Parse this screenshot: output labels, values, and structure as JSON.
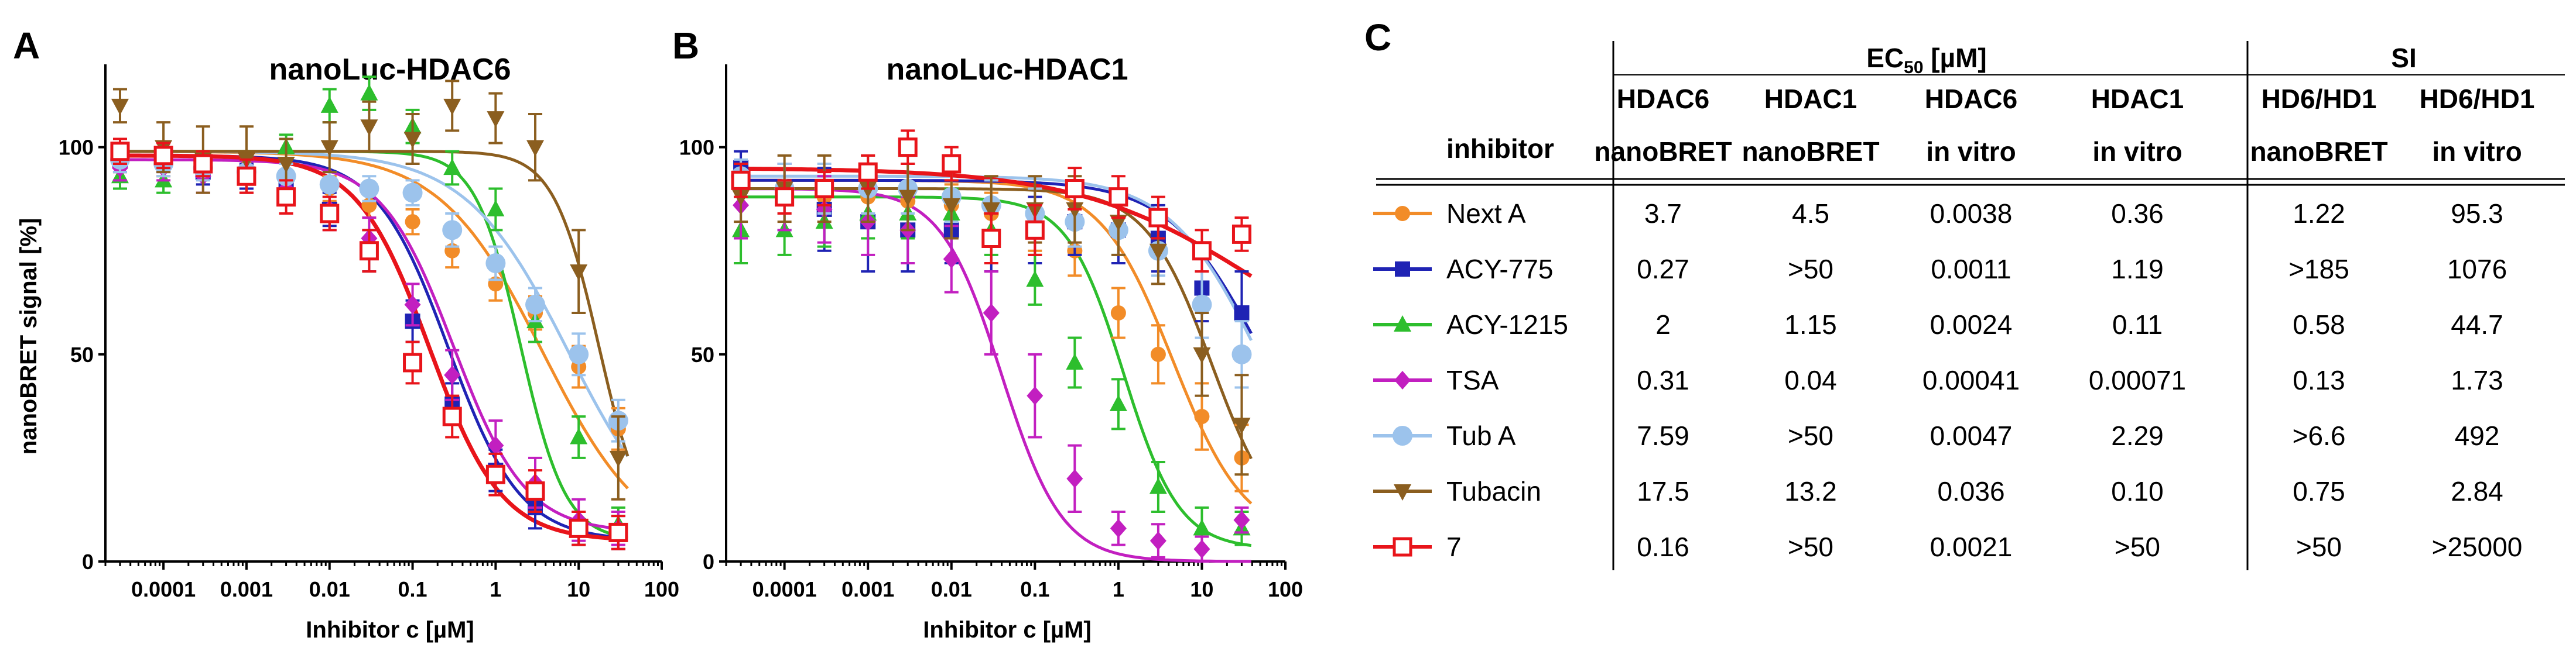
{
  "panels": {
    "A": {
      "letter": "A",
      "chart_data": {
        "type": "scatter",
        "title": "nanoLuc-HDAC6",
        "xlabel": "Inhibitor c [µM]",
        "ylabel": "nanoBRET signal [%]",
        "xscale": "log",
        "xlim": [
          2e-05,
          100
        ],
        "ylim": [
          0,
          120
        ],
        "xticks": [
          0.0001,
          0.001,
          0.01,
          0.1,
          1,
          10,
          100
        ],
        "xtick_labels": [
          "0.0001",
          "0.001",
          "0.01",
          "0.1",
          "1",
          "10",
          "100"
        ],
        "yticks": [
          0,
          50,
          100
        ],
        "ytick_labels": [
          "0",
          "50",
          "100"
        ],
        "x": [
          3e-05,
          0.0001,
          0.0003,
          0.001,
          0.003,
          0.01,
          0.03,
          0.1,
          0.3,
          1,
          3,
          10,
          30
        ],
        "series": [
          {
            "name": "Next A",
            "ec50": 3.7,
            "hill": 0.7,
            "top": 99,
            "bottom": 2,
            "values": [
              97,
              96,
              96,
              95,
              93,
              90,
              86,
              82,
              75,
              67,
              60,
              47,
              32
            ],
            "err": [
              3,
              3,
              3,
              3,
              3,
              3,
              3,
              3,
              4,
              4,
              4,
              5,
              5
            ]
          },
          {
            "name": "ACY-775",
            "ec50": 0.27,
            "hill": 1.0,
            "top": 98,
            "bottom": 5,
            "values": [
              97,
              97,
              94,
              93,
              90,
              85,
              75,
              58,
              38,
              22,
              13,
              8,
              7
            ],
            "err": [
              3,
              3,
              3,
              3,
              3,
              4,
              5,
              5,
              5,
              5,
              5,
              4,
              4
            ]
          },
          {
            "name": "ACY-1215",
            "ec50": 2.0,
            "hill": 1.6,
            "top": 99,
            "bottom": 5,
            "values": [
              93,
              92,
              96,
              95,
              100,
              110,
              113,
              105,
              95,
              85,
              58,
              30,
              9
            ],
            "err": [
              3,
              3,
              3,
              3,
              3,
              4,
              4,
              4,
              4,
              5,
              5,
              5,
              4
            ]
          },
          {
            "name": "TSA",
            "ec50": 0.31,
            "hill": 1.0,
            "top": 97,
            "bottom": 7,
            "values": [
              95,
              95,
              93,
              93,
              90,
              85,
              78,
              62,
              45,
              28,
              19,
              10,
              8
            ],
            "err": [
              3,
              3,
              4,
              4,
              4,
              5,
              5,
              5,
              6,
              6,
              6,
              5,
              4
            ]
          },
          {
            "name": "Tub A",
            "ec50": 7.59,
            "hill": 0.7,
            "top": 99,
            "bottom": 2,
            "values": [
              97,
              96,
              95,
              94,
              93,
              91,
              90,
              89,
              80,
              72,
              62,
              50,
              34
            ],
            "err": [
              3,
              3,
              3,
              3,
              3,
              3,
              3,
              3,
              4,
              4,
              4,
              5,
              5
            ]
          },
          {
            "name": "Tubacin",
            "ec50": 17.5,
            "hill": 1.6,
            "top": 99,
            "bottom": 5,
            "values": [
              110,
              100,
              97,
              97,
              96,
              100,
              105,
              102,
              110,
              107,
              100,
              70,
              25
            ],
            "err": [
              4,
              6,
              8,
              8,
              6,
              6,
              6,
              6,
              6,
              6,
              8,
              10,
              10
            ]
          },
          {
            "name": "7",
            "ec50": 0.16,
            "hill": 1.0,
            "top": 98,
            "bottom": 5,
            "values": [
              99,
              98,
              96,
              93,
              88,
              84,
              75,
              48,
              35,
              21,
              17,
              8,
              7
            ],
            "err": [
              3,
              3,
              3,
              4,
              4,
              4,
              5,
              5,
              5,
              5,
              5,
              4,
              4
            ]
          }
        ]
      }
    },
    "B": {
      "letter": "B",
      "chart_data": {
        "type": "scatter",
        "title": "nanoLuc-HDAC1",
        "xlabel": "Inhibitor c [µM]",
        "ylabel": "",
        "xscale": "log",
        "xlim": [
          2e-05,
          100
        ],
        "ylim": [
          0,
          120
        ],
        "xticks": [
          0.0001,
          0.001,
          0.01,
          0.1,
          1,
          10,
          100
        ],
        "xtick_labels": [
          "0.0001",
          "0.001",
          "0.01",
          "0.1",
          "1",
          "10",
          "100"
        ],
        "yticks": [
          0,
          50,
          100
        ],
        "ytick_labels": [
          "0",
          "50",
          "100"
        ],
        "x": [
          3e-05,
          0.0001,
          0.0003,
          0.001,
          0.003,
          0.01,
          0.03,
          0.1,
          0.3,
          1,
          3,
          10,
          30
        ],
        "series": [
          {
            "name": "Next A",
            "ec50": 4.5,
            "hill": 1.0,
            "top": 92,
            "bottom": 5,
            "values": [
              90,
              88,
              88,
              88,
              87,
              86,
              84,
              80,
              75,
              60,
              50,
              35,
              25
            ],
            "err": [
              4,
              4,
              4,
              4,
              4,
              5,
              5,
              5,
              6,
              6,
              7,
              8,
              8
            ]
          },
          {
            "name": "ACY-775",
            "ec50": 50,
            "hill": 0.8,
            "top": 92,
            "bottom": 10,
            "values": [
              95,
              88,
              85,
              82,
              80,
              80,
              78,
              80,
              82,
              80,
              78,
              66,
              60
            ],
            "err": [
              4,
              8,
              10,
              12,
              10,
              8,
              8,
              8,
              8,
              8,
              8,
              8,
              10
            ]
          },
          {
            "name": "ACY-1215",
            "ec50": 1.15,
            "hill": 1.3,
            "top": 88,
            "bottom": 3,
            "values": [
              80,
              80,
              82,
              84,
              84,
              84,
              80,
              68,
              48,
              38,
              18,
              8,
              8
            ],
            "err": [
              8,
              6,
              6,
              6,
              6,
              6,
              6,
              6,
              6,
              6,
              6,
              5,
              4
            ]
          },
          {
            "name": "TSA",
            "ec50": 0.04,
            "hill": 1.2,
            "top": 90,
            "bottom": 0,
            "values": [
              86,
              88,
              85,
              82,
              80,
              73,
              60,
              40,
              20,
              8,
              5,
              3,
              10
            ],
            "err": [
              8,
              8,
              8,
              8,
              8,
              8,
              10,
              10,
              8,
              4,
              4,
              3,
              3
            ]
          },
          {
            "name": "Tub A",
            "ec50": 50,
            "hill": 0.8,
            "top": 93,
            "bottom": 5,
            "values": [
              93,
              90,
              90,
              90,
              90,
              88,
              86,
              84,
              82,
              80,
              75,
              62,
              50
            ],
            "err": [
              4,
              6,
              6,
              6,
              6,
              6,
              6,
              6,
              6,
              6,
              6,
              8,
              8
            ]
          },
          {
            "name": "Tubacin",
            "ec50": 13.2,
            "hill": 1.1,
            "top": 90,
            "bottom": 5,
            "values": [
              88,
              90,
              90,
              90,
              88,
              86,
              85,
              85,
              85,
              82,
              75,
              50,
              33
            ],
            "err": [
              6,
              8,
              8,
              8,
              8,
              8,
              8,
              8,
              8,
              8,
              8,
              10,
              12
            ]
          },
          {
            "name": "7",
            "ec50": 50,
            "hill": 0.4,
            "top": 95,
            "bottom": 40,
            "values": [
              92,
              88,
              90,
              94,
              100,
              96,
              78,
              80,
              90,
              88,
              83,
              75,
              79
            ],
            "err": [
              4,
              4,
              4,
              4,
              4,
              4,
              6,
              6,
              5,
              5,
              5,
              5,
              4
            ]
          }
        ]
      }
    },
    "C": {
      "letter": "C",
      "header": {
        "ec50_main": "EC",
        "ec50_sub": "50",
        "ec50_unit": " [µM]",
        "si": "SI",
        "row1": [
          "HDAC6",
          "HDAC1",
          "HDAC6",
          "HDAC1",
          "HD6/HD1",
          "HD6/HD1"
        ],
        "inhibitor": "inhibitor",
        "row2": [
          "nanoBRET",
          "nanoBRET",
          "in vitro",
          "in vitro",
          "nanoBRET",
          "in vitro"
        ]
      },
      "rows": [
        {
          "name": "Next A",
          "vals": [
            "3.7",
            "4.5",
            "0.0038",
            "0.36",
            "1.22",
            "95.3"
          ]
        },
        {
          "name": "ACY-775",
          "vals": [
            "0.27",
            ">50",
            "0.0011",
            "1.19",
            ">185",
            "1076"
          ]
        },
        {
          "name": "ACY-1215",
          "vals": [
            "2",
            "1.15",
            "0.0024",
            "0.11",
            "0.58",
            "44.7"
          ]
        },
        {
          "name": "TSA",
          "vals": [
            "0.31",
            "0.04",
            "0.00041",
            "0.00071",
            "0.13",
            "1.73"
          ]
        },
        {
          "name": "Tub A",
          "vals": [
            "7.59",
            ">50",
            "0.0047",
            "2.29",
            ">6.6",
            "492"
          ]
        },
        {
          "name": "Tubacin",
          "vals": [
            "17.5",
            "13.2",
            "0.036",
            "0.10",
            "0.75",
            "2.84"
          ]
        },
        {
          "name": "7",
          "vals": [
            "0.16",
            ">50",
            "0.0021",
            ">50",
            ">50",
            ">25000"
          ]
        }
      ]
    }
  },
  "series_style": [
    {
      "name": "Next A",
      "color": "#F28C28",
      "marker": "circle"
    },
    {
      "name": "ACY-775",
      "color": "#1F23B4",
      "marker": "square"
    },
    {
      "name": "ACY-1215",
      "color": "#2DBE2D",
      "marker": "triangle-up"
    },
    {
      "name": "TSA",
      "color": "#C21FC0",
      "marker": "diamond"
    },
    {
      "name": "Tub A",
      "color": "#9CC3EC",
      "marker": "big-circle"
    },
    {
      "name": "Tubacin",
      "color": "#8B5E1F",
      "marker": "triangle-down"
    },
    {
      "name": "7",
      "color": "#E8141A",
      "marker": "open-square"
    }
  ]
}
